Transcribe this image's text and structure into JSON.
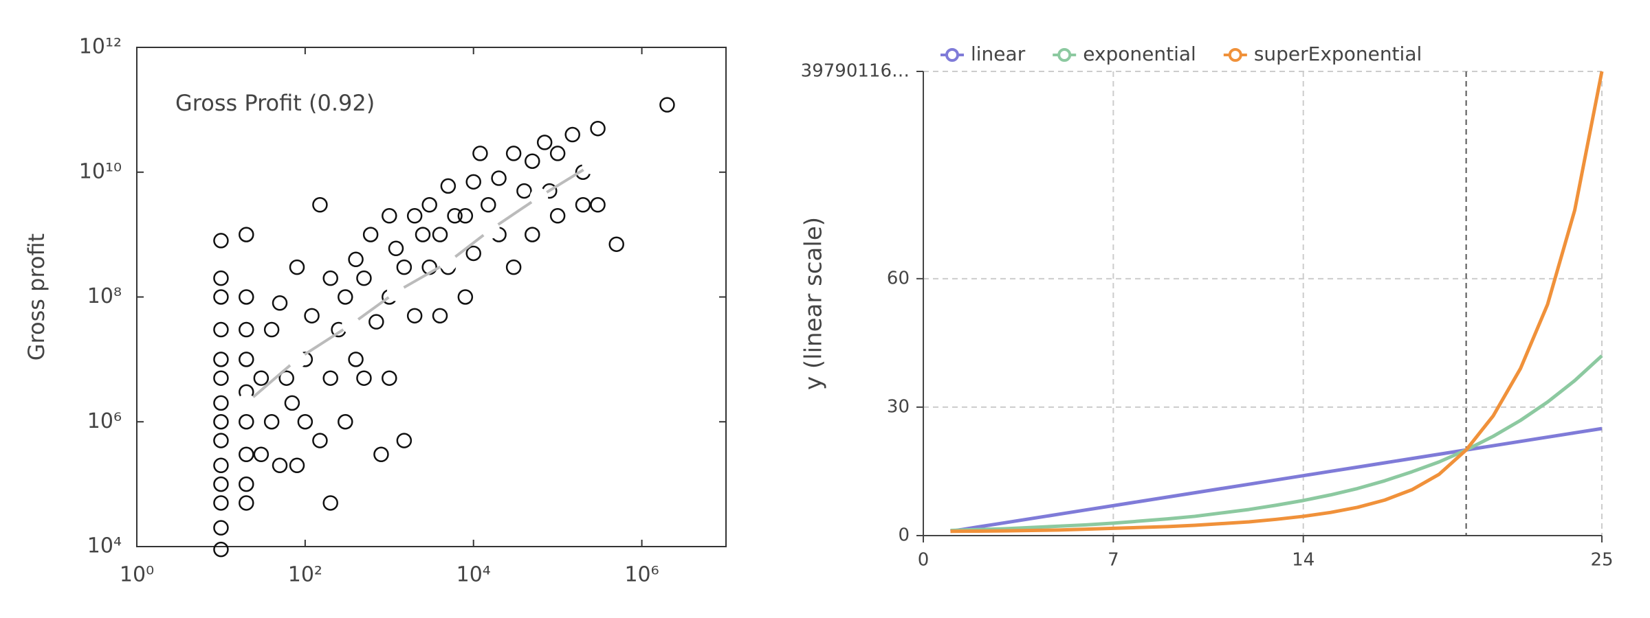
{
  "chart_data": [
    {
      "type": "scatter",
      "title": "Gross Profit (0.92)",
      "y_label": "Gross profit",
      "log_x": true,
      "log_y": true,
      "xlim": [
        1,
        10000000
      ],
      "ylim": [
        10000,
        1000000000000
      ],
      "xticks": [
        {
          "value": 1,
          "label": "10⁰"
        },
        {
          "value": 100,
          "label": "10²"
        },
        {
          "value": 10000,
          "label": "10⁴"
        },
        {
          "value": 1000000,
          "label": "10⁶"
        }
      ],
      "yticks": [
        {
          "value": 10000,
          "label": "10⁴"
        },
        {
          "value": 1000000,
          "label": "10⁶"
        },
        {
          "value": 100000000,
          "label": "10⁸"
        },
        {
          "value": 10000000000,
          "label": "10¹⁰"
        },
        {
          "value": 1000000000000,
          "label": "10¹²"
        }
      ],
      "series": [
        {
          "color": "#111111",
          "marker": "hollow",
          "x": [
            10,
            10,
            10,
            10,
            10,
            10,
            10,
            10,
            10,
            10,
            10,
            10,
            10,
            10,
            20,
            20,
            20,
            20,
            20,
            20,
            20,
            20,
            20,
            30,
            30,
            40,
            40,
            50,
            50,
            60,
            70,
            80,
            80,
            100,
            100,
            120,
            150,
            150,
            200,
            200,
            200,
            250,
            300,
            300,
            400,
            400,
            500,
            500,
            600,
            700,
            800,
            1000,
            1000,
            1000,
            1200,
            1500,
            1500,
            2000,
            2000,
            2500,
            3000,
            3000,
            4000,
            4000,
            5000,
            5000,
            6000,
            8000,
            8000,
            10000,
            10000,
            12000,
            15000,
            20000,
            20000,
            30000,
            30000,
            40000,
            50000,
            50000,
            70000,
            80000,
            100000,
            100000,
            150000,
            200000,
            200000,
            300000,
            300000,
            500000,
            2000000
          ],
          "values": [
            9000,
            20000,
            50000,
            100000,
            200000,
            500000,
            1000000,
            2000000,
            5000000,
            10000000,
            30000000,
            100000000,
            200000000,
            800000000,
            50000,
            100000,
            300000,
            1000000,
            3000000,
            10000000,
            30000000,
            100000000,
            1000000000,
            300000,
            5000000,
            1000000,
            30000000,
            200000,
            80000000,
            5000000,
            2000000,
            300000000,
            200000,
            10000000,
            1000000,
            50000000,
            3000000000,
            500000,
            200000000,
            5000000,
            50000,
            30000000,
            100000000,
            1000000,
            400000000,
            10000000,
            200000000,
            5000000,
            1000000000,
            40000000,
            300000,
            2000000000,
            100000000,
            5000000,
            600000000,
            300000000,
            500000,
            2000000000,
            50000000,
            1000000000,
            300000000,
            3000000000,
            1000000000,
            50000000,
            6000000000,
            300000000,
            2000000000,
            100000000,
            2000000000,
            7000000000,
            500000000,
            20000000000,
            3000000000,
            1000000000,
            8000000000,
            20000000000,
            300000000,
            5000000000,
            15000000000,
            1000000000,
            30000000000,
            5000000000,
            20000000000,
            2000000000,
            40000000000,
            10000000000,
            3000000000,
            50000000000,
            3000000000,
            700000000,
            120000000000
          ]
        },
        {
          "color": "#ffffff",
          "marker": "filled",
          "line_color": "#bbbbbb",
          "x": [
            20,
            80,
            350,
            1200,
            5000,
            16000,
            60000,
            250000
          ],
          "values": [
            2000000,
            10000000,
            36000000,
            120000000,
            360000000,
            1200000000,
            4000000000,
            13000000000
          ]
        }
      ]
    },
    {
      "type": "line",
      "y_label": "y (linear scale)",
      "grid": true,
      "crosshair_x": 20,
      "x": [
        1,
        2,
        3,
        4,
        5,
        6,
        7,
        8,
        9,
        10,
        11,
        12,
        13,
        14,
        15,
        16,
        17,
        18,
        19,
        20,
        21,
        22,
        23,
        24,
        25
      ],
      "xlim": [
        0,
        25
      ],
      "ylim": [
        0,
        108.4
      ],
      "xticks": [
        0,
        7,
        14,
        25
      ],
      "yticks": [
        0,
        30,
        60,
        {
          "value": 108.4,
          "label": "39790116…"
        }
      ],
      "series": [
        {
          "name": "linear",
          "color": "#7f7bd8",
          "values": [
            1,
            2,
            3,
            4,
            5,
            6,
            7,
            8,
            9,
            10,
            11,
            12,
            13,
            14,
            15,
            16,
            17,
            18,
            19,
            20,
            21,
            22,
            23,
            24,
            25
          ]
        },
        {
          "name": "exponential",
          "color": "#8cc9a0",
          "values": [
            1.2,
            1.4,
            1.6,
            1.9,
            2.2,
            2.5,
            2.9,
            3.4,
            3.9,
            4.5,
            5.3,
            6.1,
            7.1,
            8.2,
            9.5,
            11,
            12.8,
            14.9,
            17.2,
            20,
            23.2,
            26.9,
            31.2,
            36.2,
            42
          ]
        },
        {
          "name": "superExponential",
          "color": "#f0913a",
          "values": [
            1,
            1.05,
            1.1,
            1.2,
            1.3,
            1.5,
            1.7,
            1.9,
            2.1,
            2.4,
            2.8,
            3.2,
            3.8,
            4.5,
            5.4,
            6.6,
            8.3,
            10.7,
            14.3,
            20,
            28,
            39,
            54,
            76,
            108.4
          ]
        }
      ]
    }
  ]
}
